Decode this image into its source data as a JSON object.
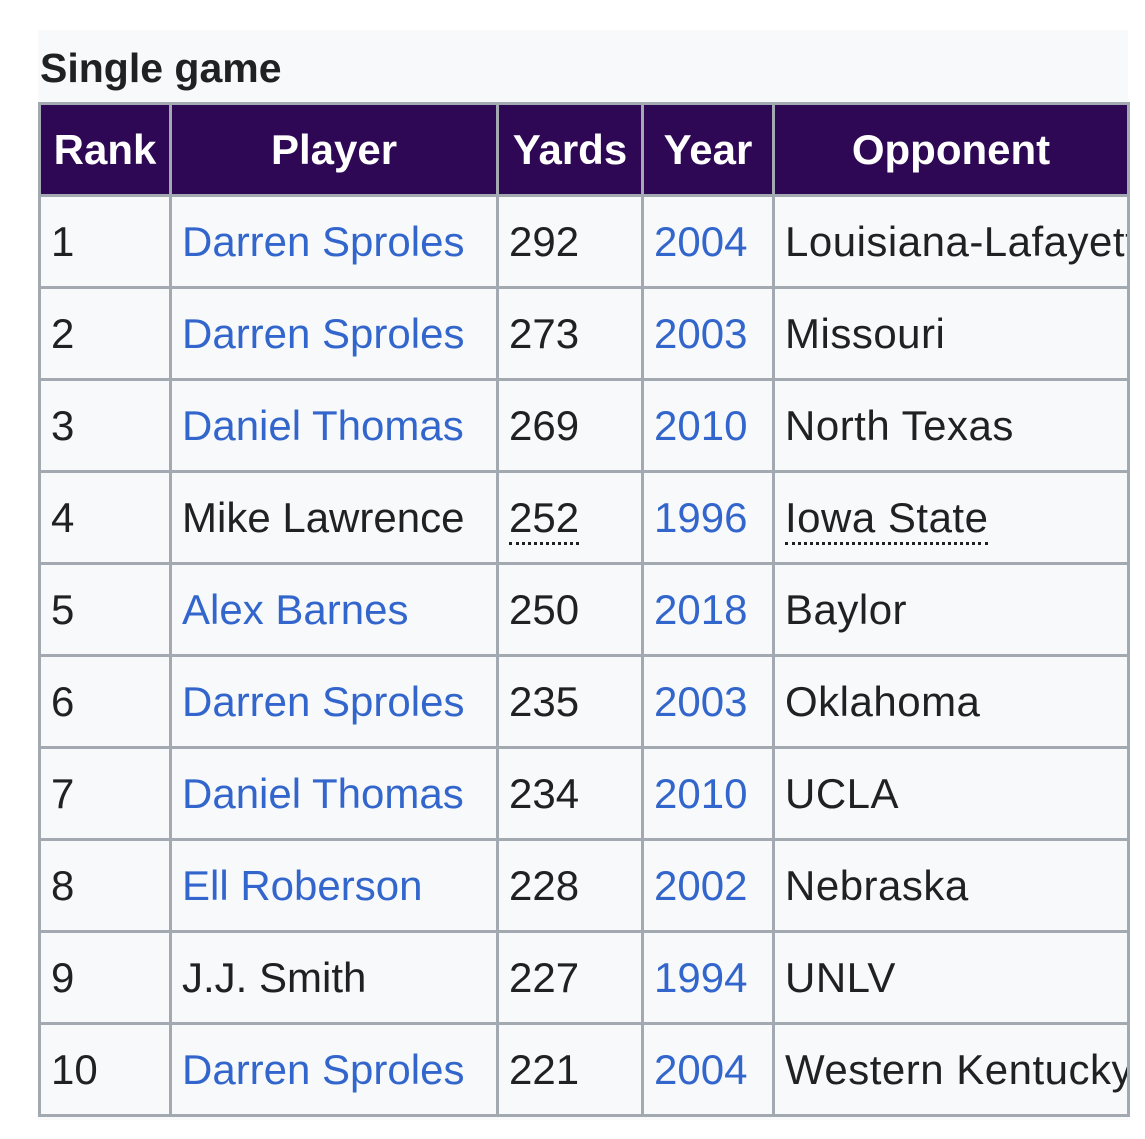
{
  "caption": "Single game",
  "columns": [
    "Rank",
    "Player",
    "Yards",
    "Year",
    "Opponent"
  ],
  "rows": [
    {
      "rank": "1",
      "player": "Darren Sproles",
      "player_link": true,
      "yards": "292",
      "yards_dotted": false,
      "year": "2004",
      "opponent": "Louisiana-Lafayette",
      "opponent_dotted": false
    },
    {
      "rank": "2",
      "player": "Darren Sproles",
      "player_link": true,
      "yards": "273",
      "yards_dotted": false,
      "year": "2003",
      "opponent": "Missouri",
      "opponent_dotted": false
    },
    {
      "rank": "3",
      "player": "Daniel Thomas",
      "player_link": true,
      "yards": "269",
      "yards_dotted": false,
      "year": "2010",
      "opponent": "North Texas",
      "opponent_dotted": false
    },
    {
      "rank": "4",
      "player": "Mike Lawrence",
      "player_link": false,
      "yards": "252",
      "yards_dotted": true,
      "year": "1996",
      "opponent": "Iowa State",
      "opponent_dotted": true
    },
    {
      "rank": "5",
      "player": "Alex Barnes",
      "player_link": true,
      "yards": "250",
      "yards_dotted": false,
      "year": "2018",
      "opponent": "Baylor",
      "opponent_dotted": false
    },
    {
      "rank": "6",
      "player": "Darren Sproles",
      "player_link": true,
      "yards": "235",
      "yards_dotted": false,
      "year": "2003",
      "opponent": "Oklahoma",
      "opponent_dotted": false
    },
    {
      "rank": "7",
      "player": "Daniel Thomas",
      "player_link": true,
      "yards": "234",
      "yards_dotted": false,
      "year": "2010",
      "opponent": "UCLA",
      "opponent_dotted": false
    },
    {
      "rank": "8",
      "player": "Ell Roberson",
      "player_link": true,
      "yards": "228",
      "yards_dotted": false,
      "year": "2002",
      "opponent": "Nebraska",
      "opponent_dotted": false
    },
    {
      "rank": "9",
      "player": "J.J. Smith",
      "player_link": false,
      "yards": "227",
      "yards_dotted": false,
      "year": "1994",
      "opponent": "UNLV",
      "opponent_dotted": false
    },
    {
      "rank": "10",
      "player": "Darren Sproles",
      "player_link": true,
      "yards": "221",
      "yards_dotted": false,
      "year": "2004",
      "opponent": "Western Kentucky",
      "opponent_dotted": false
    }
  ],
  "colors": {
    "header_background": "#2e0854",
    "link": "#3366cc",
    "text": "#202122",
    "border": "#a2a9b1",
    "table_background": "#f8f9fa"
  }
}
